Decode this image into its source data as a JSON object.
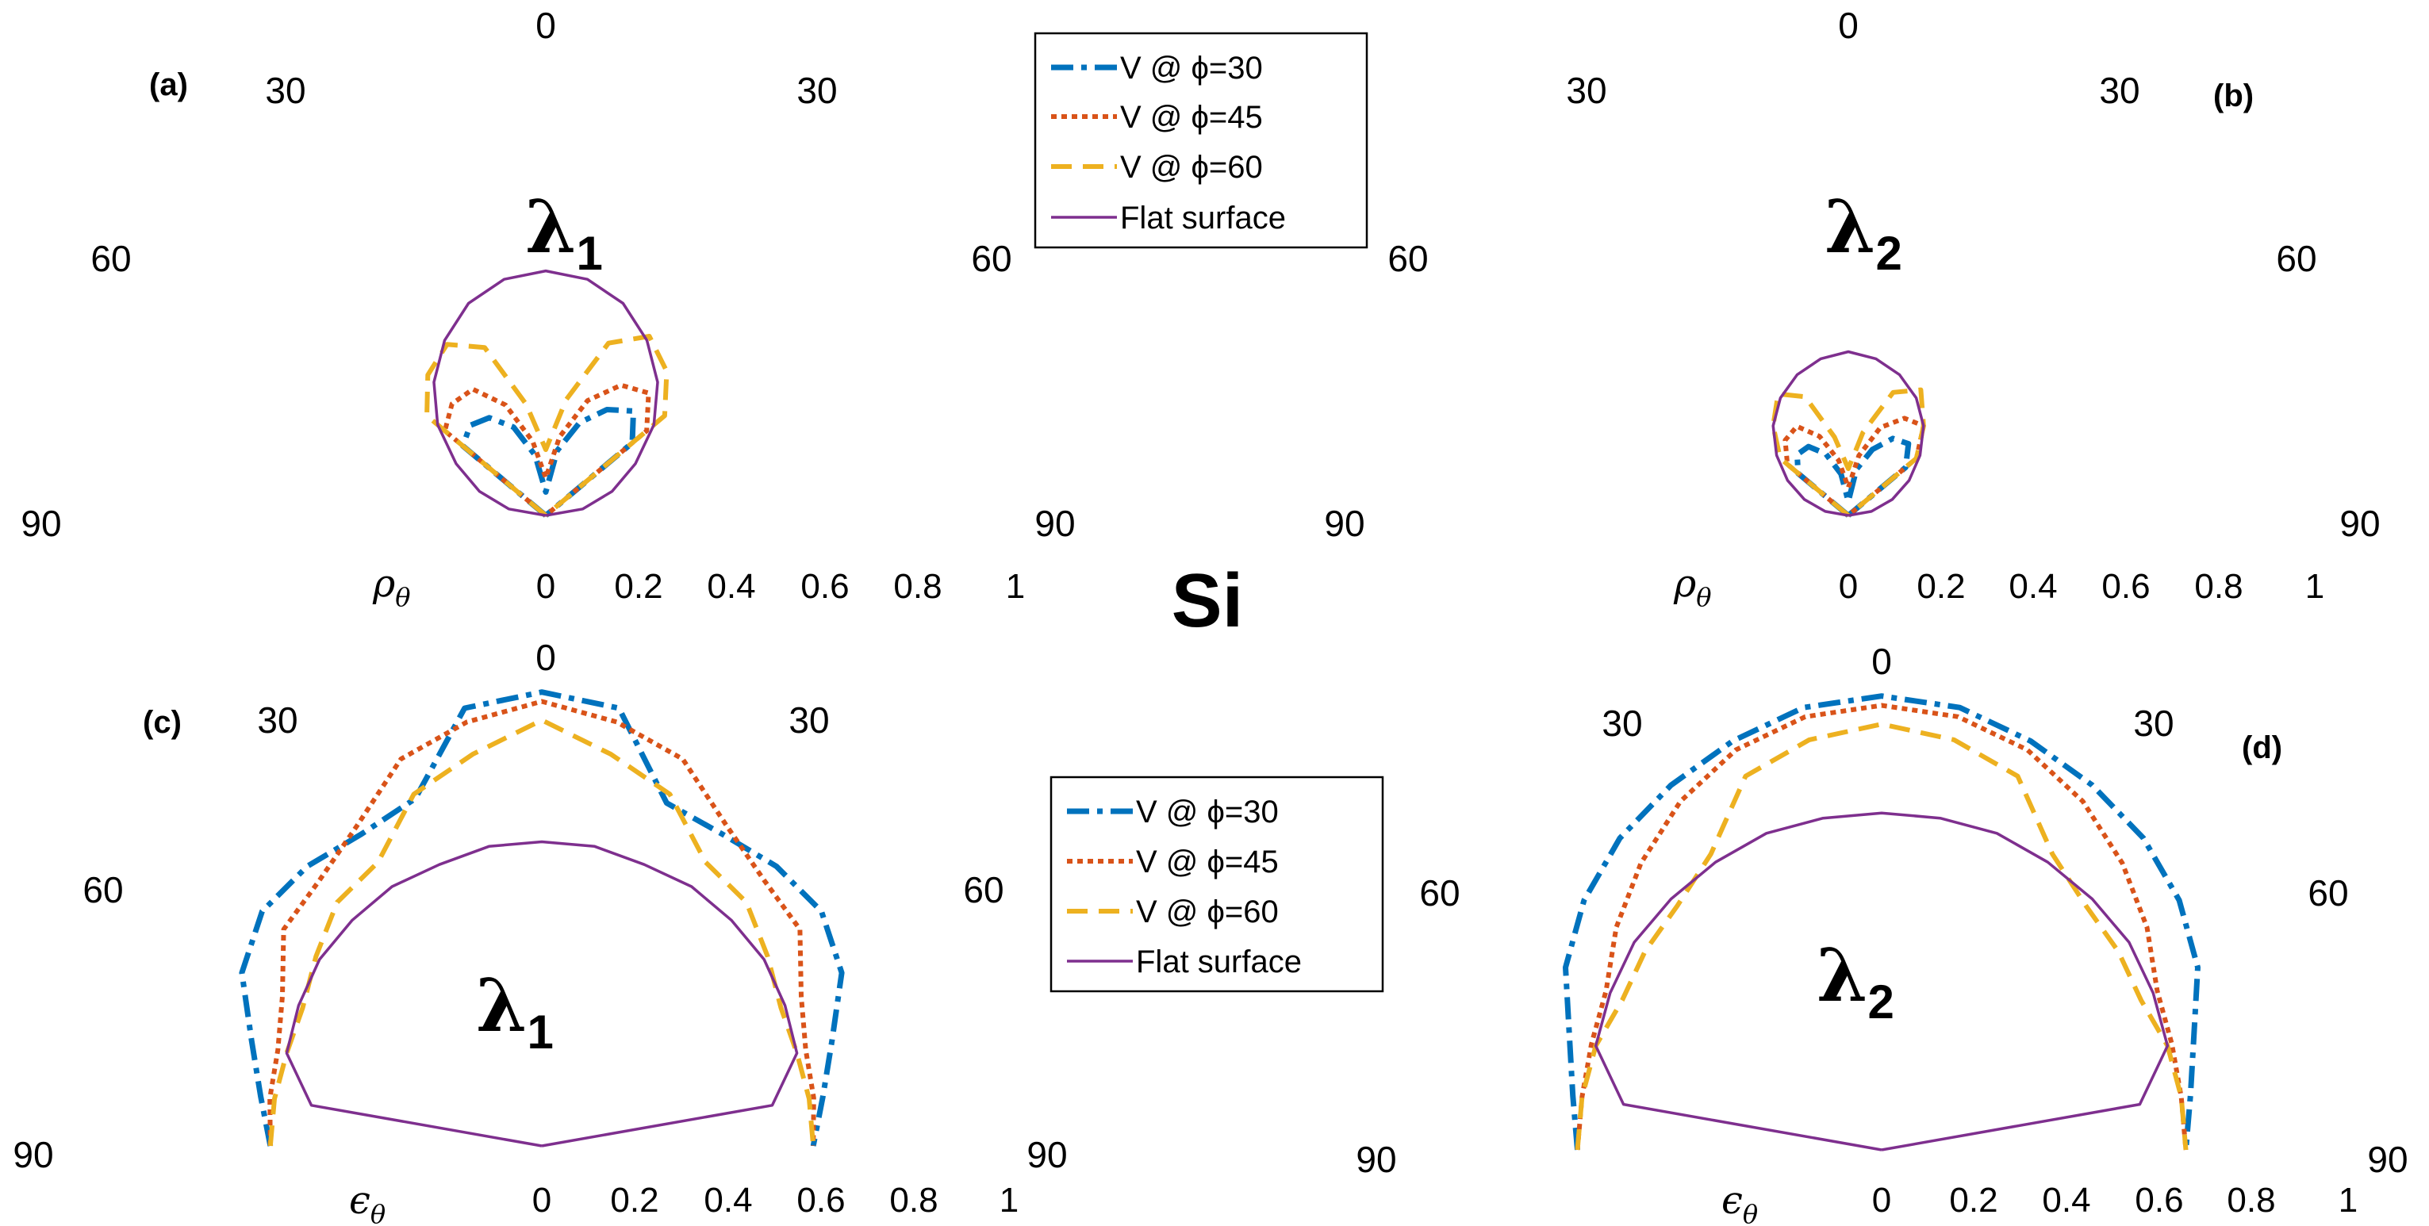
{
  "figure_label": "Si",
  "colors": {
    "V30": "#0072BD",
    "V45": "#D95319",
    "V60": "#EDB120",
    "flat": "#7E2F8E"
  },
  "chart_data": [
    {
      "id": "a",
      "panel_label": "(a)",
      "type": "line",
      "projection": "polar-half",
      "wavelength_symbol": "λ",
      "wavelength_subscript": "1",
      "radial_axis": {
        "symbol": "ρ",
        "subscript": "θ",
        "range": [
          0,
          1
        ],
        "tick_labels": [
          "0",
          "0.2",
          "0.4",
          "0.6",
          "0.8",
          "1"
        ]
      },
      "angle_labels": {
        "top": "0",
        "upper_left": "30",
        "upper_right": "30",
        "mid_left": "60",
        "mid_right": "60",
        "bottom_left": "90",
        "bottom_right": "90"
      },
      "legend": [
        "V @ ϕ=30",
        "V @ ϕ=45",
        "V @ ϕ=60",
        "Flat surface"
      ],
      "angles_deg": [
        -90,
        -80,
        -70,
        -60,
        -50,
        -40,
        -30,
        -20,
        -10,
        0,
        10,
        20,
        30,
        40,
        50,
        60,
        70,
        80,
        90
      ],
      "series": [
        {
          "name": "V @ ϕ=30",
          "values": [
            0,
            0,
            0,
            0,
            0.23,
            0.25,
            0.24,
            0.2,
            0.13,
            0.05,
            0.14,
            0.21,
            0.26,
            0.29,
            0.24,
            0,
            0,
            0,
            0
          ]
        },
        {
          "name": "V @ ϕ=45",
          "values": [
            0,
            0,
            0,
            0,
            0.28,
            0.31,
            0.31,
            0.25,
            0.16,
            0.08,
            0.17,
            0.26,
            0.32,
            0.34,
            0.28,
            0,
            0,
            0,
            0
          ]
        },
        {
          "name": "V @ ϕ=60",
          "values": [
            0,
            0,
            0,
            0,
            0.33,
            0.39,
            0.42,
            0.38,
            0.24,
            0.14,
            0.25,
            0.39,
            0.44,
            0.4,
            0.33,
            0,
            0,
            0,
            0
          ]
        },
        {
          "name": "Flat surface",
          "values": [
            0,
            0.08,
            0.15,
            0.22,
            0.3,
            0.37,
            0.43,
            0.48,
            0.51,
            0.52,
            0.51,
            0.48,
            0.43,
            0.37,
            0.3,
            0.22,
            0.15,
            0.08,
            0
          ]
        }
      ]
    },
    {
      "id": "b",
      "panel_label": "(b)",
      "type": "line",
      "projection": "polar-half",
      "wavelength_symbol": "λ",
      "wavelength_subscript": "2",
      "radial_axis": {
        "symbol": "ρ",
        "subscript": "θ",
        "range": [
          0,
          1
        ],
        "tick_labels": [
          "0",
          "0.2",
          "0.4",
          "0.6",
          "0.8",
          "1"
        ]
      },
      "angle_labels": {
        "top": "0",
        "upper_left": "30",
        "upper_right": "30",
        "mid_left": "60",
        "mid_right": "60",
        "bottom_left": "90",
        "bottom_right": "90"
      },
      "angles_deg": [
        -90,
        -80,
        -70,
        -60,
        -50,
        -40,
        -30,
        -20,
        -10,
        0,
        10,
        20,
        30,
        40,
        50,
        60,
        70,
        80,
        90
      ],
      "series": [
        {
          "name": "V @ ϕ=30",
          "values": [
            0,
            0,
            0,
            0,
            0.14,
            0.17,
            0.17,
            0.14,
            0.09,
            0.03,
            0.1,
            0.15,
            0.19,
            0.2,
            0.16,
            0,
            0,
            0,
            0
          ]
        },
        {
          "name": "V @ ϕ=45",
          "values": [
            0,
            0,
            0,
            0,
            0.17,
            0.21,
            0.22,
            0.18,
            0.12,
            0.06,
            0.13,
            0.2,
            0.24,
            0.25,
            0.19,
            0,
            0,
            0,
            0
          ]
        },
        {
          "name": "V @ ϕ=60",
          "values": [
            0,
            0,
            0,
            0,
            0.19,
            0.25,
            0.3,
            0.27,
            0.17,
            0.1,
            0.18,
            0.28,
            0.31,
            0.25,
            0.19,
            0,
            0,
            0,
            0
          ]
        },
        {
          "name": "Flat surface",
          "values": [
            0,
            0.05,
            0.1,
            0.15,
            0.2,
            0.25,
            0.29,
            0.32,
            0.34,
            0.35,
            0.34,
            0.32,
            0.29,
            0.25,
            0.2,
            0.15,
            0.1,
            0.05,
            0
          ]
        }
      ]
    },
    {
      "id": "c",
      "panel_label": "(c)",
      "type": "line",
      "projection": "polar-half",
      "wavelength_symbol": "λ",
      "wavelength_subscript": "1",
      "radial_axis": {
        "symbol": "ϵ",
        "subscript": "θ",
        "range": [
          0,
          1
        ],
        "tick_labels": [
          "0",
          "0.2",
          "0.4",
          "0.6",
          "0.8",
          "1"
        ]
      },
      "angle_labels": {
        "top": "0",
        "upper_left": "30",
        "upper_right": "30",
        "mid_left": "60",
        "mid_right": "60",
        "bottom_left": "90",
        "bottom_right": "90"
      },
      "legend": [
        "V @ ϕ=30",
        "V @ ϕ=45",
        "V @ ϕ=60",
        "Flat surface"
      ],
      "angles_deg": [
        -90,
        -80,
        -70,
        -60,
        -50,
        -40,
        -30,
        -20,
        -10,
        0,
        10,
        20,
        30,
        40,
        50,
        60,
        70,
        80,
        90
      ],
      "series": [
        {
          "name": "V @ ϕ=30",
          "values": [
            0.58,
            0.61,
            0.66,
            0.74,
            0.78,
            0.78,
            0.77,
            0.79,
            0.95,
            0.97,
            0.95,
            0.78,
            0.77,
            0.78,
            0.78,
            0.74,
            0.66,
            0.61,
            0.58
          ]
        },
        {
          "name": "V @ ϕ=45",
          "values": [
            0.58,
            0.59,
            0.6,
            0.64,
            0.72,
            0.74,
            0.79,
            0.88,
            0.92,
            0.95,
            0.92,
            0.88,
            0.79,
            0.74,
            0.72,
            0.64,
            0.6,
            0.59,
            0.58
          ]
        },
        {
          "name": "V @ ϕ=60",
          "values": [
            0.58,
            0.58,
            0.58,
            0.59,
            0.63,
            0.68,
            0.7,
            0.8,
            0.85,
            0.91,
            0.85,
            0.8,
            0.7,
            0.68,
            0.63,
            0.59,
            0.58,
            0.58,
            0.58
          ]
        },
        {
          "name": "Flat surface",
          "values": [
            0,
            0.5,
            0.58,
            0.6,
            0.62,
            0.63,
            0.64,
            0.64,
            0.65,
            0.65,
            0.65,
            0.64,
            0.64,
            0.63,
            0.62,
            0.6,
            0.58,
            0.5,
            0
          ]
        }
      ]
    },
    {
      "id": "d",
      "panel_label": "(d)",
      "type": "line",
      "projection": "polar-half",
      "wavelength_symbol": "λ",
      "wavelength_subscript": "2",
      "radial_axis": {
        "symbol": "ϵ",
        "subscript": "θ",
        "range": [
          0,
          1
        ],
        "tick_labels": [
          "0",
          "0.2",
          "0.4",
          "0.6",
          "0.8",
          "1"
        ]
      },
      "angle_labels": {
        "top": "0",
        "upper_left": "30",
        "upper_right": "30",
        "mid_left": "60",
        "mid_right": "60",
        "bottom_left": "90",
        "bottom_right": "90"
      },
      "angles_deg": [
        -90,
        -80,
        -70,
        -60,
        -50,
        -40,
        -30,
        -20,
        -10,
        0,
        10,
        20,
        30,
        40,
        50,
        60,
        70,
        80,
        90
      ],
      "series": [
        {
          "name": "V @ ϕ=30",
          "values": [
            0.65,
            0.67,
            0.71,
            0.78,
            0.83,
            0.87,
            0.9,
            0.93,
            0.96,
            0.97,
            0.96,
            0.93,
            0.9,
            0.87,
            0.83,
            0.78,
            0.71,
            0.67,
            0.65
          ]
        },
        {
          "name": "V @ ϕ=45",
          "values": [
            0.65,
            0.65,
            0.66,
            0.68,
            0.74,
            0.8,
            0.86,
            0.91,
            0.94,
            0.95,
            0.94,
            0.91,
            0.86,
            0.8,
            0.74,
            0.68,
            0.66,
            0.65,
            0.65
          ]
        },
        {
          "name": "V @ ϕ=60",
          "values": [
            0.65,
            0.65,
            0.65,
            0.64,
            0.66,
            0.68,
            0.73,
            0.85,
            0.89,
            0.91,
            0.89,
            0.85,
            0.73,
            0.68,
            0.66,
            0.64,
            0.65,
            0.65,
            0.65
          ]
        },
        {
          "name": "Flat surface",
          "values": [
            0,
            0.56,
            0.65,
            0.67,
            0.69,
            0.7,
            0.71,
            0.72,
            0.72,
            0.72,
            0.72,
            0.72,
            0.71,
            0.7,
            0.69,
            0.67,
            0.65,
            0.56,
            0
          ]
        }
      ]
    }
  ]
}
